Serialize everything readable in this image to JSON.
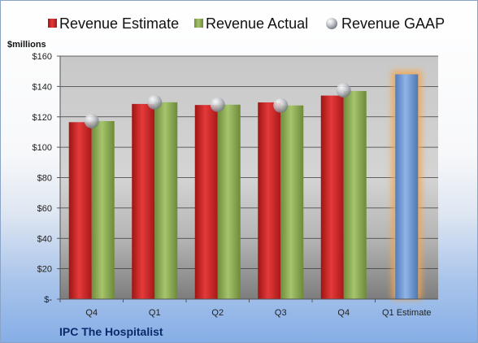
{
  "chart_data": {
    "type": "bar",
    "units_label": "$millions",
    "footer_title": "IPC The Hospitalist",
    "categories": [
      "Q4",
      "Q1",
      "Q2",
      "Q3",
      "Q4",
      "Q1 Estimate"
    ],
    "series": [
      {
        "name": "Revenue Estimate",
        "color": "#d42a2a",
        "values": [
          116.5,
          128.5,
          127.8,
          129.5,
          134.0,
          null
        ]
      },
      {
        "name": "Revenue Actual",
        "color": "#8fb357",
        "values": [
          117.2,
          129.6,
          128.0,
          127.5,
          137.0,
          null
        ]
      },
      {
        "name": "Revenue GAAP",
        "color": "#b8bcc4",
        "marker": "sphere",
        "values": [
          117.2,
          129.6,
          128.0,
          127.5,
          137.5,
          null
        ]
      }
    ],
    "estimate_bar": {
      "category": "Q1 Estimate",
      "value": 148.0,
      "color": "#6f9ad4",
      "glow": "#f4a64a"
    },
    "yticks": [
      "$-",
      "$20",
      "$40",
      "$60",
      "$80",
      "$100",
      "$120",
      "$140",
      "$160"
    ],
    "ylim": [
      0,
      160
    ],
    "grid": true,
    "legend_position": "top"
  }
}
